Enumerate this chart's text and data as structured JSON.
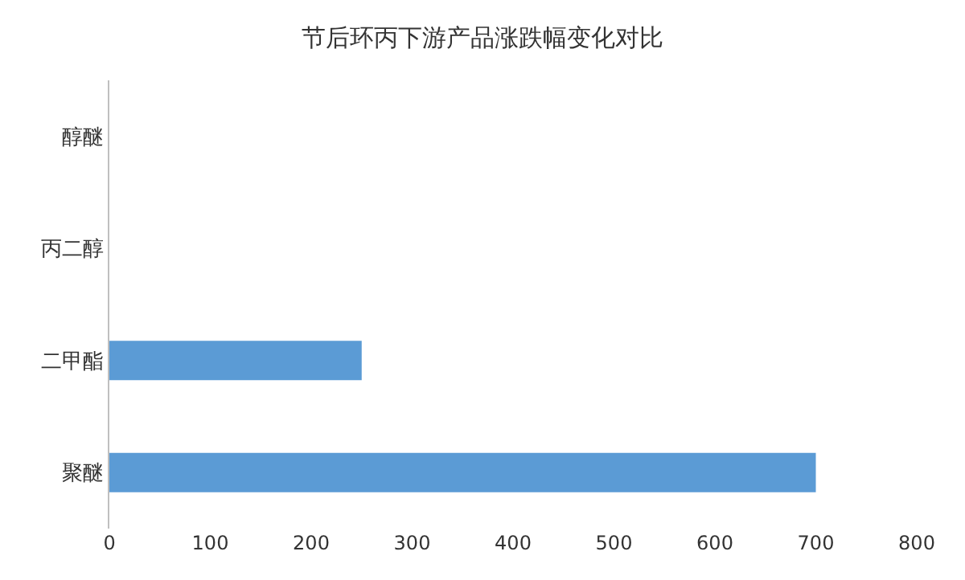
{
  "chart_data": {
    "type": "bar",
    "orientation": "horizontal",
    "title": "节后环丙下游产品涨跌幅变化对比",
    "categories": [
      "醇醚",
      "丙二醇",
      "二甲酯",
      "聚醚"
    ],
    "values": [
      0,
      0,
      250,
      700
    ],
    "color": "#5b9bd5",
    "xlim": [
      0,
      800
    ],
    "xticks": [
      0,
      100,
      200,
      300,
      400,
      500,
      600,
      700,
      800
    ]
  }
}
